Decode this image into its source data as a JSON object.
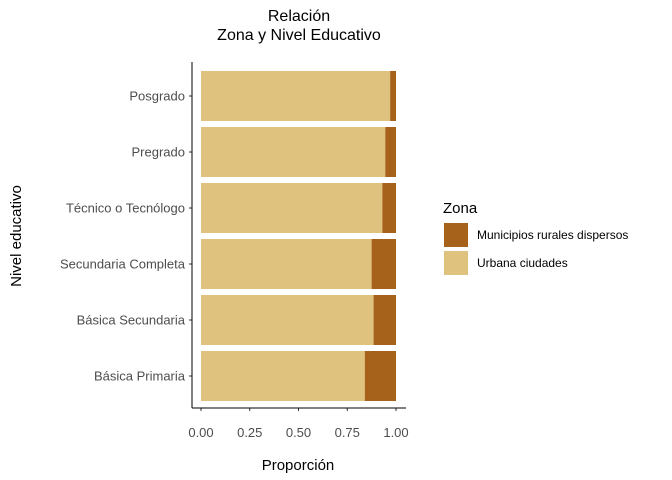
{
  "chart_data": {
    "type": "bar",
    "orientation": "horizontal",
    "stacked": true,
    "title": "Relación",
    "subtitle": "Zona y Nivel Educativo",
    "xlabel": "Proporción",
    "ylabel": "Nivel educativo",
    "xlim": [
      0,
      1
    ],
    "xticks": [
      "0.00",
      "0.25",
      "0.50",
      "0.75",
      "1.00"
    ],
    "categories": [
      "Posgrado",
      "Pregrado",
      "Técnico o Tecnólogo",
      "Secundaria Completa",
      "Básica Secundaria",
      "Básica Primaria"
    ],
    "series": [
      {
        "name": "Urbana ciudades",
        "color": "#dfc27d",
        "values": [
          0.97,
          0.945,
          0.93,
          0.875,
          0.885,
          0.84
        ]
      },
      {
        "name": "Municipios rurales dispersos",
        "color": "#a6611a",
        "values": [
          0.03,
          0.055,
          0.07,
          0.125,
          0.115,
          0.16
        ]
      }
    ],
    "legend": {
      "title": "Zona",
      "position": "right",
      "items": [
        {
          "label": "Municipios rurales dispersos",
          "color": "#a6611a"
        },
        {
          "label": "Urbana ciudades",
          "color": "#dfc27d"
        }
      ]
    },
    "grid": false
  }
}
